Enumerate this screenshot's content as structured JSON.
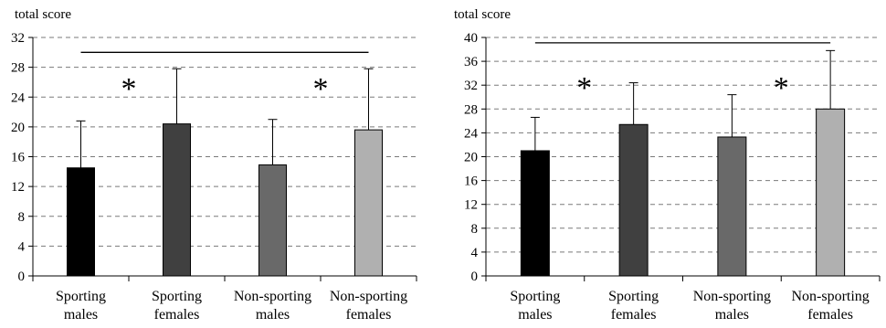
{
  "figure": {
    "left_panel_label": "total score",
    "right_panel_label": "total score"
  },
  "chart_data": [
    {
      "type": "bar",
      "title": "",
      "ylabel": "total score",
      "xlabel": "",
      "categories": [
        "Sporting males",
        "Sporting females",
        "Non-sporting males",
        "Non-sporting females"
      ],
      "category_lines": [
        [
          "Sporting",
          "males"
        ],
        [
          "Sporting",
          "females"
        ],
        [
          "Non-sporting",
          "males"
        ],
        [
          "Non-sporting",
          "females"
        ]
      ],
      "values": [
        14.5,
        20.4,
        14.9,
        19.6
      ],
      "error_upper": [
        20.8,
        27.8,
        21.0,
        27.8
      ],
      "bar_colors": [
        "#000000",
        "#404040",
        "#696969",
        "#b0b0b0"
      ],
      "ylim": [
        0,
        32
      ],
      "yticks": [
        0,
        4,
        8,
        12,
        16,
        20,
        24,
        28,
        32
      ],
      "yticks_labels": [
        "0",
        "4",
        "8",
        "12",
        "16",
        "20",
        "24",
        "28",
        "32"
      ],
      "grid": "horizontal dashed",
      "significance_marks": [
        {
          "symbol": "*",
          "category_index": 1,
          "y": 25.5
        },
        {
          "symbol": "*",
          "category_index": 3,
          "y": 25.5
        }
      ],
      "bracket": {
        "from_index": 0,
        "to_index": 3,
        "y": 30.0
      }
    },
    {
      "type": "bar",
      "title": "",
      "ylabel": "total score",
      "xlabel": "",
      "categories": [
        "Sporting males",
        "Sporting females",
        "Non-sporting males",
        "Non-sporting females"
      ],
      "category_lines": [
        [
          "Sporting",
          "males"
        ],
        [
          "Sporting",
          "females"
        ],
        [
          "Non-sporting",
          "males"
        ],
        [
          "Non-sporting",
          "females"
        ]
      ],
      "values": [
        21.0,
        25.4,
        23.3,
        28.0
      ],
      "error_upper": [
        26.6,
        32.4,
        30.4,
        37.8
      ],
      "bar_colors": [
        "#000000",
        "#404040",
        "#696969",
        "#b0b0b0"
      ],
      "ylim": [
        0,
        40
      ],
      "yticks": [
        0,
        4,
        8,
        12,
        16,
        20,
        24,
        28,
        32,
        36,
        40
      ],
      "yticks_labels": [
        "0",
        "4",
        "8",
        "12",
        "16",
        "20",
        "24",
        "28",
        "32",
        "36",
        "40"
      ],
      "grid": "horizontal dashed",
      "significance_marks": [
        {
          "symbol": "*",
          "category_index": 1,
          "y": 32.0
        },
        {
          "symbol": "*",
          "category_index": 3,
          "y": 32.0
        }
      ],
      "bracket": {
        "from_index": 0,
        "to_index": 3,
        "y": 39.1
      }
    }
  ]
}
